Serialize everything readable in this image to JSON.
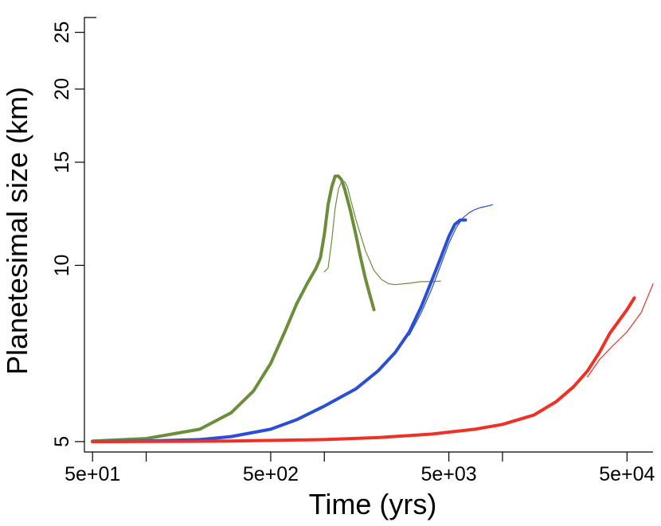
{
  "chart_data": {
    "type": "line",
    "title": "",
    "xlabel": "Time (yrs)",
    "ylabel": "Planetesimal size (km)",
    "x_scale": "log",
    "y_scale": "log",
    "xlim": [
      45,
      70000
    ],
    "ylim": [
      4.8,
      26.5
    ],
    "x_ticks": [
      {
        "value": 50,
        "label": "5e+01"
      },
      {
        "value": 100,
        "label": ""
      },
      {
        "value": 500,
        "label": "5e+02"
      },
      {
        "value": 1000,
        "label": ""
      },
      {
        "value": 5000,
        "label": "5e+03"
      },
      {
        "value": 10000,
        "label": ""
      },
      {
        "value": 50000,
        "label": "5e+04"
      },
      {
        "value": 100000,
        "label": ""
      }
    ],
    "y_ticks": [
      {
        "value": 5,
        "label": "5"
      },
      {
        "value": 10,
        "label": "10"
      },
      {
        "value": 15,
        "label": "15"
      },
      {
        "value": 20,
        "label": "20"
      },
      {
        "value": 25,
        "label": "25"
      }
    ],
    "series": [
      {
        "color": "#6b8e3a",
        "width": 4,
        "points": [
          [
            50,
            5.01
          ],
          [
            100,
            5.06
          ],
          [
            200,
            5.25
          ],
          [
            300,
            5.6
          ],
          [
            400,
            6.1
          ],
          [
            500,
            6.8
          ],
          [
            600,
            7.7
          ],
          [
            700,
            8.6
          ],
          [
            800,
            9.3
          ],
          [
            900,
            9.9
          ],
          [
            950,
            10.3
          ],
          [
            1000,
            11.3
          ],
          [
            1050,
            12.7
          ],
          [
            1100,
            13.6
          ],
          [
            1150,
            14.2
          ],
          [
            1200,
            14.2
          ],
          [
            1250,
            14.0
          ],
          [
            1300,
            13.5
          ],
          [
            1400,
            12.4
          ],
          [
            1500,
            11.3
          ],
          [
            1600,
            10.3
          ],
          [
            1700,
            9.5
          ],
          [
            1800,
            8.9
          ],
          [
            1900,
            8.4
          ]
        ]
      },
      {
        "color": "#6b8e3a",
        "width": 1.2,
        "points": [
          [
            1000,
            9.75
          ],
          [
            1050,
            9.9
          ],
          [
            1100,
            11.0
          ],
          [
            1150,
            12.5
          ],
          [
            1200,
            13.5
          ],
          [
            1250,
            13.9
          ],
          [
            1300,
            13.9
          ],
          [
            1350,
            13.6
          ],
          [
            1400,
            13.0
          ],
          [
            1500,
            12.0
          ],
          [
            1700,
            10.6
          ],
          [
            1900,
            9.8
          ],
          [
            2100,
            9.45
          ],
          [
            2300,
            9.3
          ],
          [
            2500,
            9.27
          ],
          [
            3000,
            9.32
          ],
          [
            3500,
            9.38
          ],
          [
            4000,
            9.38
          ],
          [
            4500,
            9.4
          ]
        ]
      },
      {
        "color": "#2a4fd6",
        "width": 4,
        "points": [
          [
            50,
            5.0
          ],
          [
            100,
            5.01
          ],
          [
            200,
            5.04
          ],
          [
            300,
            5.1
          ],
          [
            500,
            5.25
          ],
          [
            700,
            5.45
          ],
          [
            1000,
            5.75
          ],
          [
            1500,
            6.15
          ],
          [
            2000,
            6.6
          ],
          [
            2500,
            7.1
          ],
          [
            3000,
            7.7
          ],
          [
            3500,
            8.5
          ],
          [
            4000,
            9.4
          ],
          [
            4500,
            10.3
          ],
          [
            5000,
            11.2
          ],
          [
            5400,
            11.75
          ],
          [
            5800,
            11.95
          ],
          [
            6200,
            11.95
          ]
        ]
      },
      {
        "color": "#2a4fd6",
        "width": 1.2,
        "points": [
          [
            3000,
            7.6
          ],
          [
            3500,
            8.3
          ],
          [
            4000,
            9.1
          ],
          [
            4500,
            10.0
          ],
          [
            5000,
            10.9
          ],
          [
            5500,
            11.6
          ],
          [
            6000,
            12.05
          ],
          [
            6500,
            12.3
          ],
          [
            7000,
            12.45
          ],
          [
            7500,
            12.55
          ],
          [
            8000,
            12.6
          ],
          [
            8500,
            12.65
          ],
          [
            8800,
            12.7
          ]
        ]
      },
      {
        "color": "#ee3124",
        "width": 4,
        "points": [
          [
            50,
            5.0
          ],
          [
            300,
            5.01
          ],
          [
            1000,
            5.04
          ],
          [
            2000,
            5.08
          ],
          [
            4000,
            5.15
          ],
          [
            7000,
            5.25
          ],
          [
            10000,
            5.35
          ],
          [
            15000,
            5.55
          ],
          [
            20000,
            5.85
          ],
          [
            25000,
            6.2
          ],
          [
            30000,
            6.6
          ],
          [
            35000,
            7.1
          ],
          [
            40000,
            7.65
          ],
          [
            50000,
            8.4
          ],
          [
            55000,
            8.8
          ]
        ]
      },
      {
        "color": "#ee3124",
        "width": 1.2,
        "points": [
          [
            30000,
            6.45
          ],
          [
            35000,
            6.9
          ],
          [
            40000,
            7.2
          ],
          [
            50000,
            7.7
          ],
          [
            60000,
            8.3
          ],
          [
            65000,
            8.8
          ],
          [
            70000,
            9.3
          ]
        ]
      }
    ]
  }
}
